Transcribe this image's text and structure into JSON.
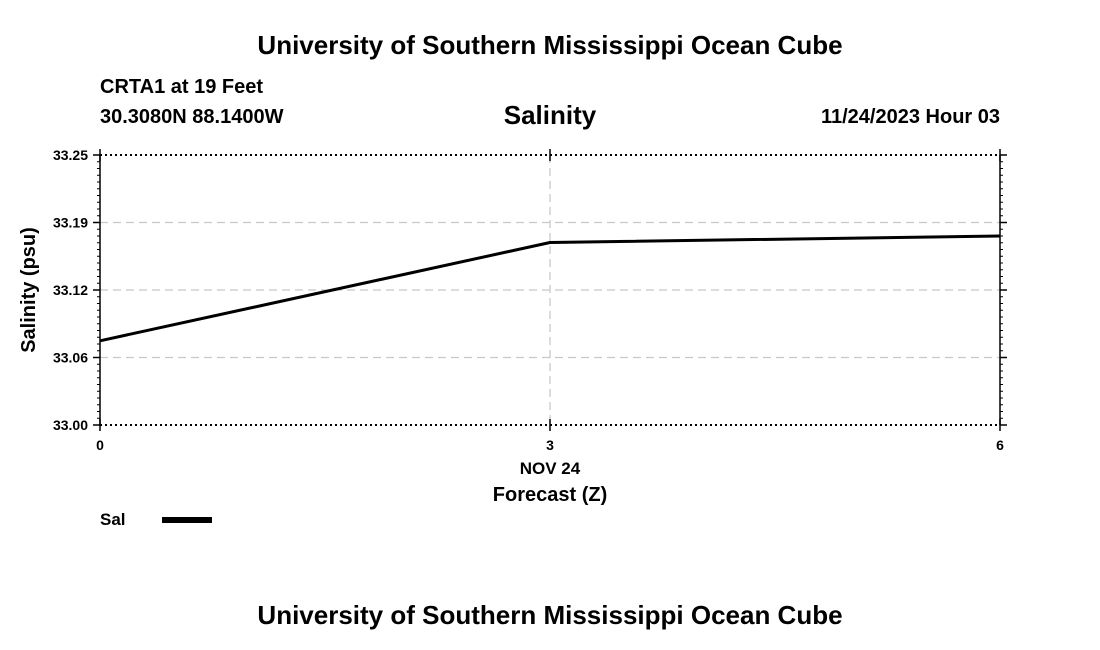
{
  "header": {
    "title": "University of Southern Mississippi Ocean Cube",
    "station": "CRTA1 at 19 Feet",
    "coords": "30.3080N  88.1400W",
    "datetime": "11/24/2023 Hour 03"
  },
  "footer": {
    "title": "University of Southern Mississippi Ocean Cube"
  },
  "legend": {
    "label": "Sal",
    "color": "#000000"
  },
  "chart_data": {
    "type": "line",
    "title": "Salinity",
    "ylabel": "Salinity (psu)",
    "xlabel": "Forecast (Z)",
    "x_sublabel": "NOV 24",
    "xlim": [
      0,
      6
    ],
    "ylim": [
      33.0,
      33.25
    ],
    "x_ticks": [
      0,
      3,
      6
    ],
    "x_tick_labels": [
      "0",
      "3",
      "6"
    ],
    "y_ticks": [
      33.0,
      33.0625,
      33.125,
      33.1875,
      33.25
    ],
    "y_tick_labels": [
      "33.00",
      "33.06",
      "33.12",
      "33.19",
      "33.25"
    ],
    "grid": true,
    "series": [
      {
        "name": "Sal",
        "color": "#000000",
        "x": [
          0,
          3,
          6
        ],
        "values": [
          33.078,
          33.169,
          33.175
        ]
      }
    ]
  }
}
